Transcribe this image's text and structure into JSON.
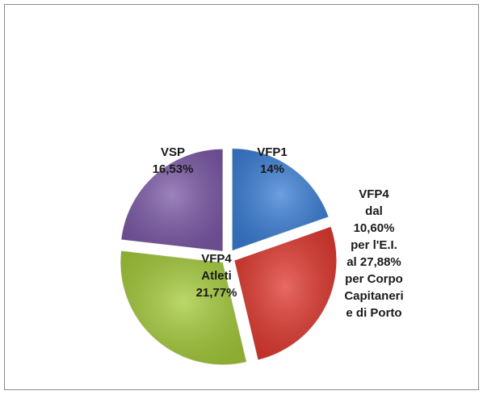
{
  "chart_data": {
    "type": "pie",
    "categories": [
      "VFP1",
      "VFP4\ndal\n10,60%\nper l'E.I.\nal 27,88%\nper Corpo\nCapitaneri\ne di Porto",
      "VFP4\nAtleti",
      "VSP"
    ],
    "values": [
      14,
      19,
      21.77,
      16.53
    ],
    "value_labels": [
      "14%",
      null,
      "21,77%",
      "16,53%"
    ],
    "colors": [
      "#3b7fd6",
      "#e0392f",
      "#a5cb3b",
      "#7c5aa8"
    ],
    "explode": true
  }
}
